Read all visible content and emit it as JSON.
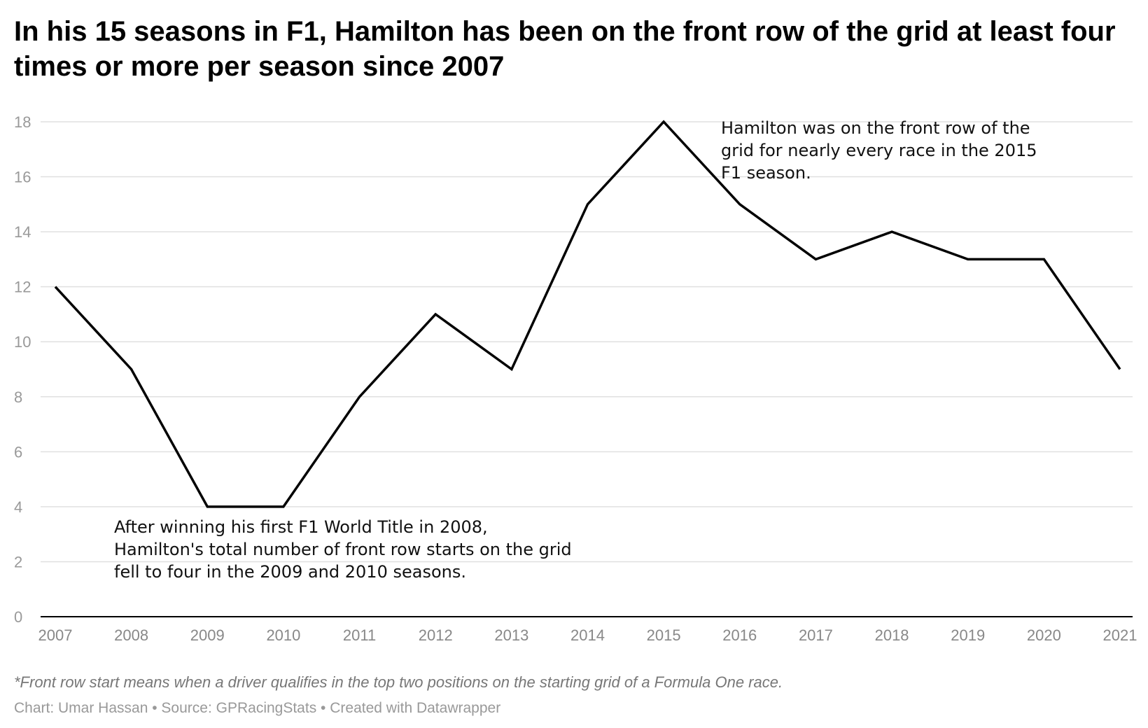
{
  "title": "In his 15 seasons in F1, Hamilton has been on the front row of the grid at least four times or more per season since 2007",
  "footnote": "*Front row start means when a driver qualifies in the top two positions on the starting grid of a Formula One race.",
  "credits": {
    "chart_by": "Chart: Umar Hassan",
    "source": "Source: GPRacingStats",
    "tool": "Created with Datawrapper",
    "separator": " • "
  },
  "colors": {
    "line": "#000000",
    "grid": "#e0e0e0",
    "axis": "#000000"
  },
  "chart_data": {
    "type": "line",
    "title": "In his 15 seasons in F1, Hamilton has been on the front row of the grid at least four times or more per season since 2007",
    "xlabel": "",
    "ylabel": "",
    "categories": [
      "2007",
      "2008",
      "2009",
      "2010",
      "2011",
      "2012",
      "2013",
      "2014",
      "2015",
      "2016",
      "2017",
      "2018",
      "2019",
      "2020",
      "2021"
    ],
    "series": [
      {
        "values": [
          12,
          9,
          4,
          4,
          8,
          11,
          9,
          15,
          18,
          15,
          13,
          14,
          13,
          13,
          9
        ]
      }
    ],
    "ylim": [
      0,
      18
    ],
    "yticks": [
      0,
      2,
      4,
      6,
      8,
      10,
      12,
      14,
      16,
      18
    ],
    "grid": true,
    "legend": "none",
    "annotations": [
      {
        "id": "ann-2015",
        "text": "Hamilton was on the front row of the grid for nearly every race in the 2015 F1 season."
      },
      {
        "id": "ann-2009",
        "text": "After winning his first F1 World Title in 2008, Hamilton's total number of front row starts on the grid fell to four in the 2009 and 2010 seasons."
      }
    ]
  }
}
